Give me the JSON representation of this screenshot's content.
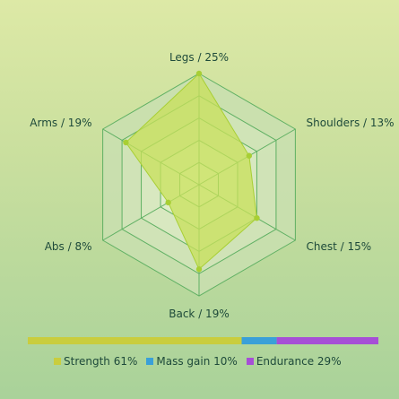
{
  "chart_data": {
    "type": "radar",
    "axes": [
      {
        "label": "Legs / 25%",
        "value": 25
      },
      {
        "label": "Shoulders / 13%",
        "value": 13
      },
      {
        "label": "Chest / 15%",
        "value": 15
      },
      {
        "label": "Back / 19%",
        "value": 19
      },
      {
        "label": "Abs / 8%",
        "value": 8
      },
      {
        "label": "Arms / 19%",
        "value": 19
      }
    ],
    "max": 25,
    "rings": 5,
    "fill_color": "#c8e05a",
    "line_color": "#a8cf34",
    "grid_color": "#5fb063",
    "split_bar": [
      {
        "name": "Strength",
        "value": 61,
        "label": "Strength 61%",
        "color": "#c9cd3e"
      },
      {
        "name": "Mass gain",
        "value": 10,
        "label": "Mass gain 10%",
        "color": "#3aa0d8"
      },
      {
        "name": "Endurance",
        "value": 29,
        "label": "Endurance 29%",
        "color": "#a64fd6"
      }
    ]
  }
}
